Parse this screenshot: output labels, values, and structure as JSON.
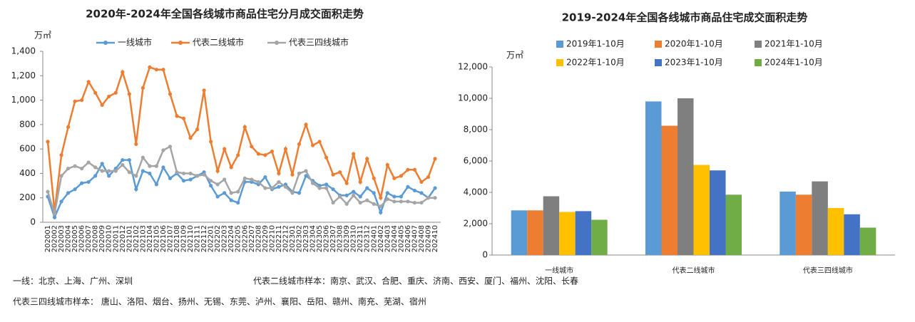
{
  "chart_data": [
    {
      "type": "line",
      "title": "2020年-2024年全国各线城市商品住宅分月成交面积走势",
      "y_unit": "万㎡",
      "categories": [
        "202001",
        "202002",
        "202003",
        "202004",
        "202005",
        "202006",
        "202007",
        "202008",
        "202009",
        "202010",
        "202011",
        "202012",
        "202101",
        "202102",
        "202103",
        "202104",
        "202105",
        "202106",
        "202107",
        "202108",
        "202109",
        "202110",
        "202111",
        "202112",
        "202201",
        "202202",
        "202203",
        "202204",
        "202205",
        "202206",
        "202207",
        "202208",
        "202209",
        "202210",
        "202211",
        "202212",
        "202301",
        "202302",
        "202303",
        "202304",
        "202305",
        "202306",
        "202307",
        "202308",
        "202309",
        "202310",
        "202311",
        "202312",
        "202401",
        "202402",
        "202403",
        "202404",
        "202405",
        "202406",
        "202407",
        "202408",
        "202409",
        "202410"
      ],
      "series": [
        {
          "name": "一线城市",
          "color": "#5b9bd5",
          "values": [
            210,
            40,
            170,
            240,
            270,
            320,
            330,
            380,
            480,
            380,
            440,
            510,
            510,
            270,
            420,
            400,
            310,
            450,
            360,
            400,
            340,
            350,
            380,
            410,
            300,
            210,
            240,
            180,
            160,
            330,
            330,
            310,
            370,
            270,
            290,
            310,
            250,
            240,
            380,
            340,
            300,
            310,
            270,
            220,
            220,
            250,
            210,
            280,
            240,
            80,
            240,
            210,
            210,
            290,
            260,
            240,
            200,
            280
          ]
        },
        {
          "name": "代表二线城市",
          "color": "#ed7d31",
          "values": [
            660,
            90,
            550,
            780,
            990,
            1000,
            1150,
            1060,
            960,
            1030,
            1060,
            1230,
            1050,
            640,
            1100,
            1270,
            1250,
            1250,
            1050,
            870,
            850,
            690,
            760,
            1080,
            660,
            420,
            600,
            450,
            550,
            780,
            620,
            560,
            550,
            580,
            400,
            600,
            390,
            640,
            800,
            630,
            660,
            530,
            390,
            410,
            320,
            560,
            330,
            520,
            360,
            200,
            470,
            360,
            380,
            430,
            430,
            330,
            370,
            520
          ]
        },
        {
          "name": "代表三四线城市",
          "color": "#a5a5a5",
          "values": [
            250,
            70,
            380,
            440,
            460,
            440,
            490,
            450,
            420,
            420,
            420,
            470,
            410,
            380,
            530,
            460,
            460,
            590,
            620,
            410,
            400,
            400,
            380,
            390,
            340,
            310,
            350,
            240,
            250,
            360,
            350,
            330,
            280,
            280,
            330,
            290,
            240,
            400,
            420,
            320,
            280,
            280,
            160,
            210,
            150,
            220,
            160,
            180,
            150,
            130,
            190,
            170,
            170,
            170,
            160,
            160,
            200,
            200
          ]
        }
      ],
      "ylim": [
        0,
        1400
      ],
      "yticks": [
        0,
        200,
        400,
        600,
        800,
        {
          "value": 1000,
          "label": "1,000"
        },
        {
          "value": 1200,
          "label": "1,200"
        },
        {
          "value": 1400,
          "label": "1,400"
        }
      ],
      "legend": "top",
      "notes": [
        "一线：北京、上海、广州、深圳",
        "代表二线城市样本：南京、武汉、合肥、重庆、济南、西安、厦门、福州、沈阳、长春",
        "代表三四线城市样本： 唐山、洛阳、烟台、扬州、无锡、东莞、泸州、襄阳、岳阳、赣州、南充、芜湖、宿州"
      ]
    },
    {
      "type": "bar",
      "title": "2019-2024年全国各线城市商品住宅成交面积走势",
      "y_unit": "万㎡",
      "categories": [
        "一线城市",
        "代表二线城市",
        "代表三四线城市"
      ],
      "series": [
        {
          "name": "2019年1-10月",
          "color": "#5b9bd5",
          "values": [
            2850,
            9800,
            4050
          ]
        },
        {
          "name": "2020年1-10月",
          "color": "#ed7d31",
          "values": [
            2850,
            8250,
            3850
          ]
        },
        {
          "name": "2021年1-10月",
          "color": "#7f7f7f",
          "values": [
            3750,
            10000,
            4700
          ]
        },
        {
          "name": "2022年1-10月",
          "color": "#ffc000",
          "values": [
            2750,
            5750,
            3000
          ]
        },
        {
          "name": "2023年1-10月",
          "color": "#4472c4",
          "values": [
            2800,
            5400,
            2600
          ]
        },
        {
          "name": "2024年1-10月",
          "color": "#70ad47",
          "values": [
            2250,
            3850,
            1750
          ]
        }
      ],
      "ylim": [
        0,
        12000
      ],
      "yticks": [
        0,
        {
          "value": 2000,
          "label": "2,000"
        },
        {
          "value": 4000,
          "label": "4,000"
        },
        {
          "value": 6000,
          "label": "6,000"
        },
        {
          "value": 8000,
          "label": "8,000"
        },
        {
          "value": 10000,
          "label": "10,000"
        },
        {
          "value": 12000,
          "label": "12,000"
        }
      ],
      "legend": "top"
    }
  ]
}
